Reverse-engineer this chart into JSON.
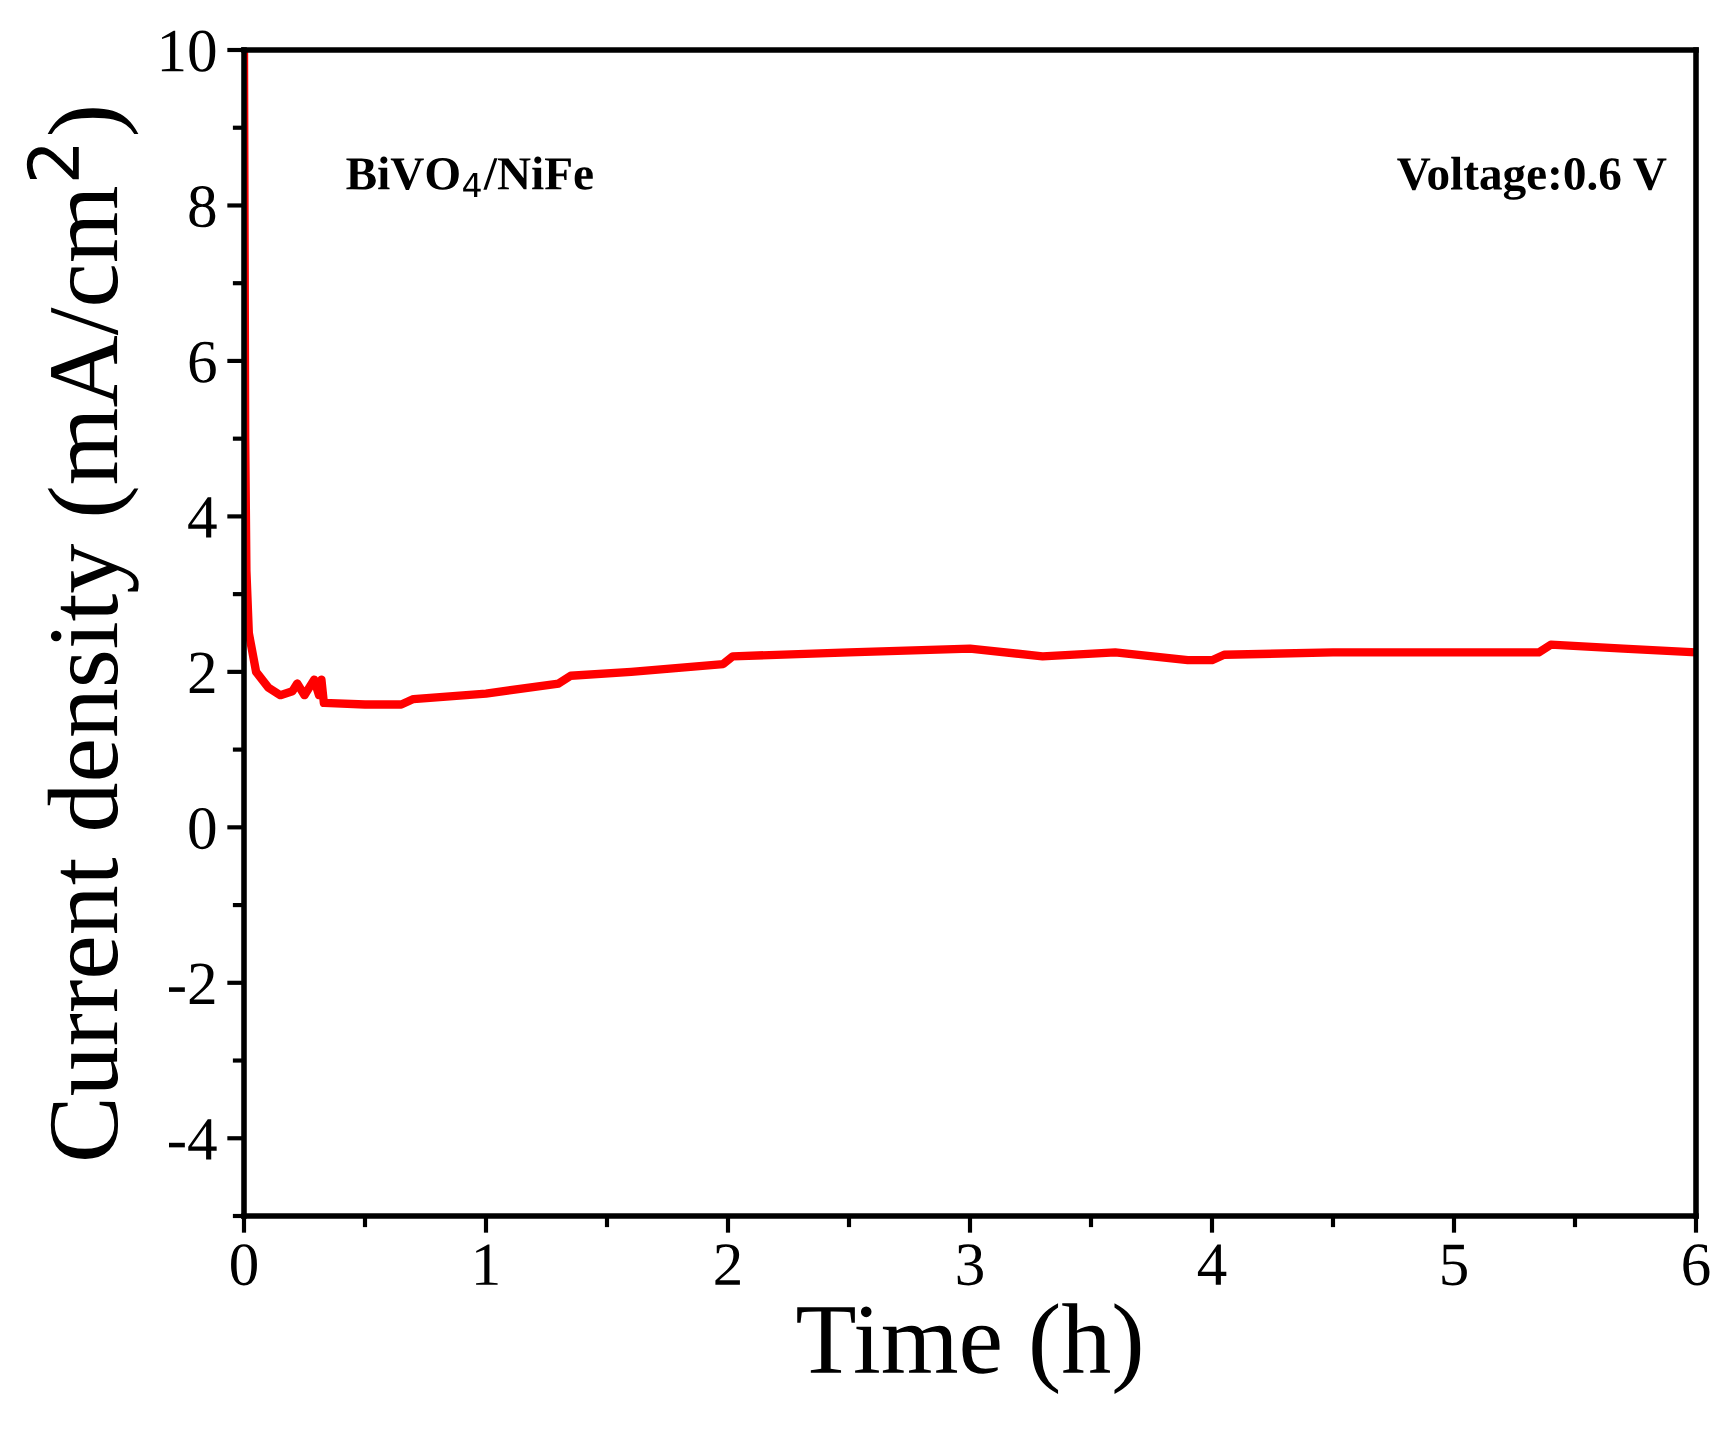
{
  "chart_data": {
    "type": "line",
    "xlabel": "Time (h)",
    "ylabel": "Current density (mA/cm$^{2}$)",
    "annotations": [
      "BiVO$_{4}$/NiFe",
      "Voltage:0.6 V"
    ],
    "x": [
      0,
      0.005,
      0.01,
      0.02,
      0.05,
      0.1,
      0.15,
      0.2,
      0.22,
      0.25,
      0.29,
      0.31,
      0.32,
      0.33,
      0.5,
      0.65,
      0.7,
      1.0,
      1.3,
      1.35,
      1.6,
      1.98,
      2.02,
      2.5,
      3.0,
      3.3,
      3.6,
      3.9,
      4.0,
      4.05,
      4.5,
      5.0,
      5.35,
      5.4,
      5.7,
      6.0
    ],
    "series": [
      {
        "color": "#ff0000",
        "values": [
          10,
          5,
          3.3,
          2.5,
          2.0,
          1.8,
          1.7,
          1.75,
          1.85,
          1.7,
          1.9,
          1.7,
          1.9,
          1.6,
          1.58,
          1.58,
          1.65,
          1.72,
          1.85,
          1.95,
          2.0,
          2.1,
          2.2,
          2.25,
          2.3,
          2.2,
          2.25,
          2.15,
          2.15,
          2.22,
          2.25,
          2.25,
          2.25,
          2.35,
          2.3,
          2.25
        ]
      }
    ],
    "xlim": [
      0,
      6
    ],
    "xticks": [
      0,
      1,
      2,
      3,
      4,
      5,
      6
    ],
    "ylim": [
      -5,
      10
    ],
    "yticks": [
      -4,
      -2,
      0,
      2,
      4,
      6,
      8,
      10
    ],
    "grid": false,
    "marker": "none",
    "line_style": "solid"
  }
}
